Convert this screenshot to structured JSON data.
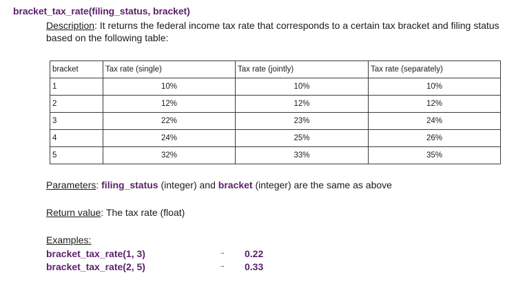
{
  "function_title": "bracket_tax_rate(filing_status, bracket)",
  "description": {
    "label": "Description",
    "text": ": It returns the federal income tax rate that corresponds to a certain tax bracket and filing status based on the following table:"
  },
  "table": {
    "headers": [
      "bracket",
      "Tax rate (single)",
      "Tax rate (jointly)",
      "Tax rate (separately)"
    ],
    "rows": [
      [
        "1",
        "10%",
        "10%",
        "10%"
      ],
      [
        "2",
        "12%",
        "12%",
        "12%"
      ],
      [
        "3",
        "22%",
        "23%",
        "24%"
      ],
      [
        "4",
        "24%",
        "25%",
        "26%"
      ],
      [
        "5",
        "32%",
        "33%",
        "35%"
      ]
    ]
  },
  "parameters": {
    "label": "Parameters",
    "colon": ": ",
    "param1": "filing_status",
    "type1": " (integer) and ",
    "param2": "bracket",
    "tail": " (integer) are the same as above"
  },
  "return_value": {
    "label": "Return value",
    "text": ": The tax rate (float)"
  },
  "examples": {
    "label": "Examples:",
    "items": [
      {
        "call": "bracket_tax_rate(1, 3)",
        "arrow": "→",
        "result": "0.22"
      },
      {
        "call": "bracket_tax_rate(2, 5)",
        "arrow": "→",
        "result": "0.33"
      }
    ]
  }
}
